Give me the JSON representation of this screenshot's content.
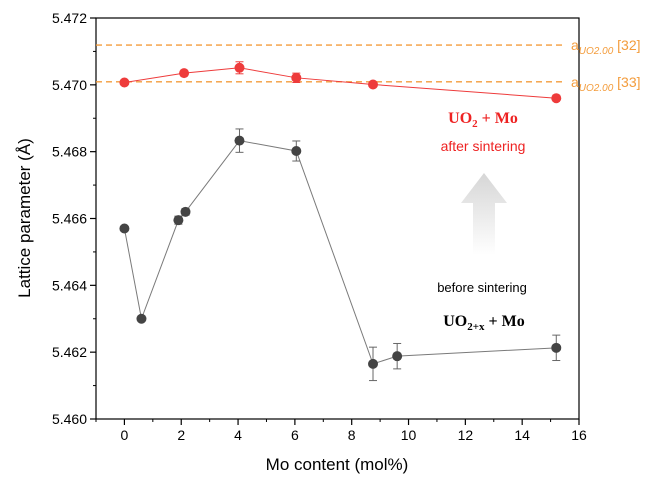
{
  "chart_data": {
    "type": "scatter",
    "xlabel": "Mo content (mol%)",
    "ylabel": "Lattice parameter (Å)",
    "xlim": [
      -1,
      16
    ],
    "ylim": [
      5.46,
      5.472
    ],
    "xticks": [
      "0",
      "2",
      "4",
      "6",
      "8",
      "10",
      "12",
      "14",
      "16"
    ],
    "yticks": [
      "5.460",
      "5.462",
      "5.464",
      "5.466",
      "5.468",
      "5.470",
      "5.472"
    ],
    "grid": false,
    "series": [
      {
        "color": "#ee3b3b",
        "x": [
          0,
          2.1,
          4.05,
          6.05,
          8.75,
          15.2
        ],
        "y": [
          5.47007,
          5.47035,
          5.47051,
          5.47021,
          5.47001,
          5.4696
        ],
        "err": [
          5e-05,
          6e-05,
          0.00018,
          0.00014,
          4e-05,
          5e-05
        ]
      },
      {
        "color": "#444444",
        "x": [
          0,
          0.6,
          1.9,
          2.15,
          4.05,
          6.05,
          8.75,
          9.6,
          15.2
        ],
        "y": [
          5.4657,
          5.463,
          5.46595,
          5.4662,
          5.46833,
          5.46802,
          5.46165,
          5.46188,
          5.46213
        ],
        "err": [
          5e-05,
          8e-05,
          0.00012,
          0.0001,
          0.00035,
          0.0003,
          0.0005,
          0.00038,
          0.00038
        ]
      }
    ],
    "reference_lines": [
      {
        "y": 5.47119,
        "label_main": "a",
        "label_sub": "UO2.00",
        "label_ref": "[32]",
        "color": "#f39c3c"
      },
      {
        "y": 5.47009,
        "label_main": "a",
        "label_sub": "UO2.00",
        "label_ref": "[33]",
        "color": "#f39c3c"
      }
    ],
    "annotations": {
      "after_formula": "UO",
      "after_formula_sub": "2",
      "after_formula_rest": " + Mo",
      "after_text": "after sintering",
      "before_text": "before sintering",
      "before_formula": "UO",
      "before_formula_sub": "2+x",
      "before_formula_rest": " + Mo"
    }
  }
}
